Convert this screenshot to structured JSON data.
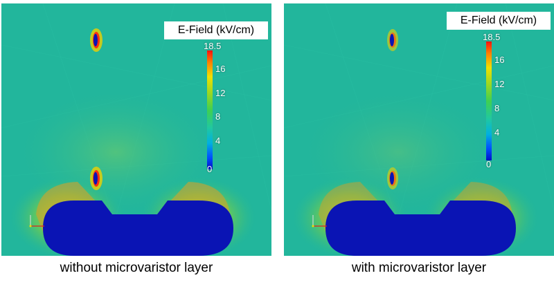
{
  "panels": [
    {
      "legend_title": "E-Field (kV/cm)",
      "scale": {
        "max": "18.5",
        "ticks": [
          "16",
          "12",
          "8",
          "4",
          "0"
        ]
      },
      "caption": "without microvaristor layer"
    },
    {
      "legend_title": "E-Field (kV/cm)",
      "scale": {
        "max": "18.5",
        "ticks": [
          "16",
          "12",
          "8",
          "4",
          "0"
        ]
      },
      "caption": "with microvaristor layer"
    }
  ],
  "colors": {
    "background_field": "#1fb89a",
    "conductor": "#0a14b4",
    "high_field": "#ff1010",
    "mid_field": "#f0d000"
  }
}
